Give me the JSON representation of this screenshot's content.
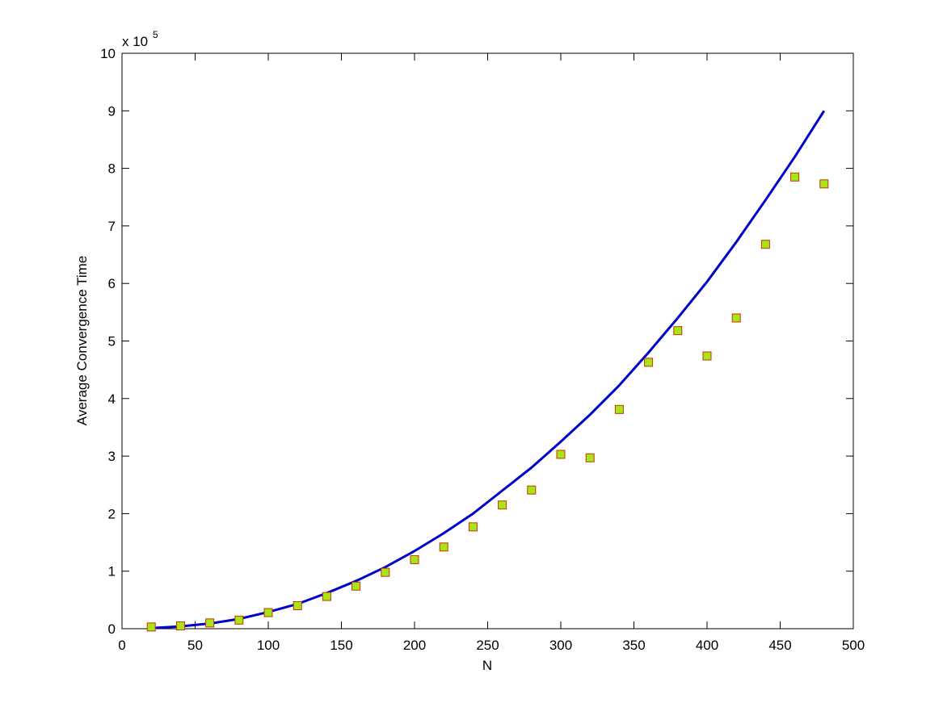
{
  "chart_data": {
    "type": "line",
    "xlabel": "N",
    "ylabel": "Average Convergence Time",
    "y_multiplier": {
      "base": "x 10",
      "exponent": "5"
    },
    "x": [
      20,
      40,
      60,
      80,
      100,
      120,
      140,
      160,
      180,
      200,
      220,
      240,
      260,
      280,
      300,
      320,
      340,
      360,
      380,
      400,
      420,
      440,
      460,
      480
    ],
    "series": [
      {
        "mode": "line",
        "color": "#0000cc",
        "values": [
          0.01,
          0.04,
          0.09,
          0.17,
          0.29,
          0.43,
          0.62,
          0.83,
          1.07,
          1.35,
          1.66,
          2.0,
          2.4,
          2.8,
          3.25,
          3.72,
          4.23,
          4.8,
          5.4,
          6.03,
          6.72,
          7.45,
          8.2,
          9.0
        ]
      },
      {
        "mode": "marker",
        "marker": "square",
        "color": "#a6e619",
        "edgecolor": "#cc3300",
        "values": [
          0.03,
          0.05,
          0.1,
          0.15,
          0.28,
          0.4,
          0.56,
          0.74,
          0.98,
          1.2,
          1.42,
          1.77,
          2.15,
          2.41,
          3.03,
          2.97,
          3.81,
          4.63,
          5.18,
          4.74,
          5.4,
          6.68,
          7.85,
          7.73
        ]
      }
    ],
    "xlim": [
      0,
      500
    ],
    "xticks": [
      0,
      50,
      100,
      150,
      200,
      250,
      300,
      350,
      400,
      450,
      500
    ],
    "ylim": [
      0,
      10
    ],
    "yticks": [
      0,
      1,
      2,
      3,
      4,
      5,
      6,
      7,
      8,
      9,
      10
    ],
    "grid": false,
    "box": true
  }
}
